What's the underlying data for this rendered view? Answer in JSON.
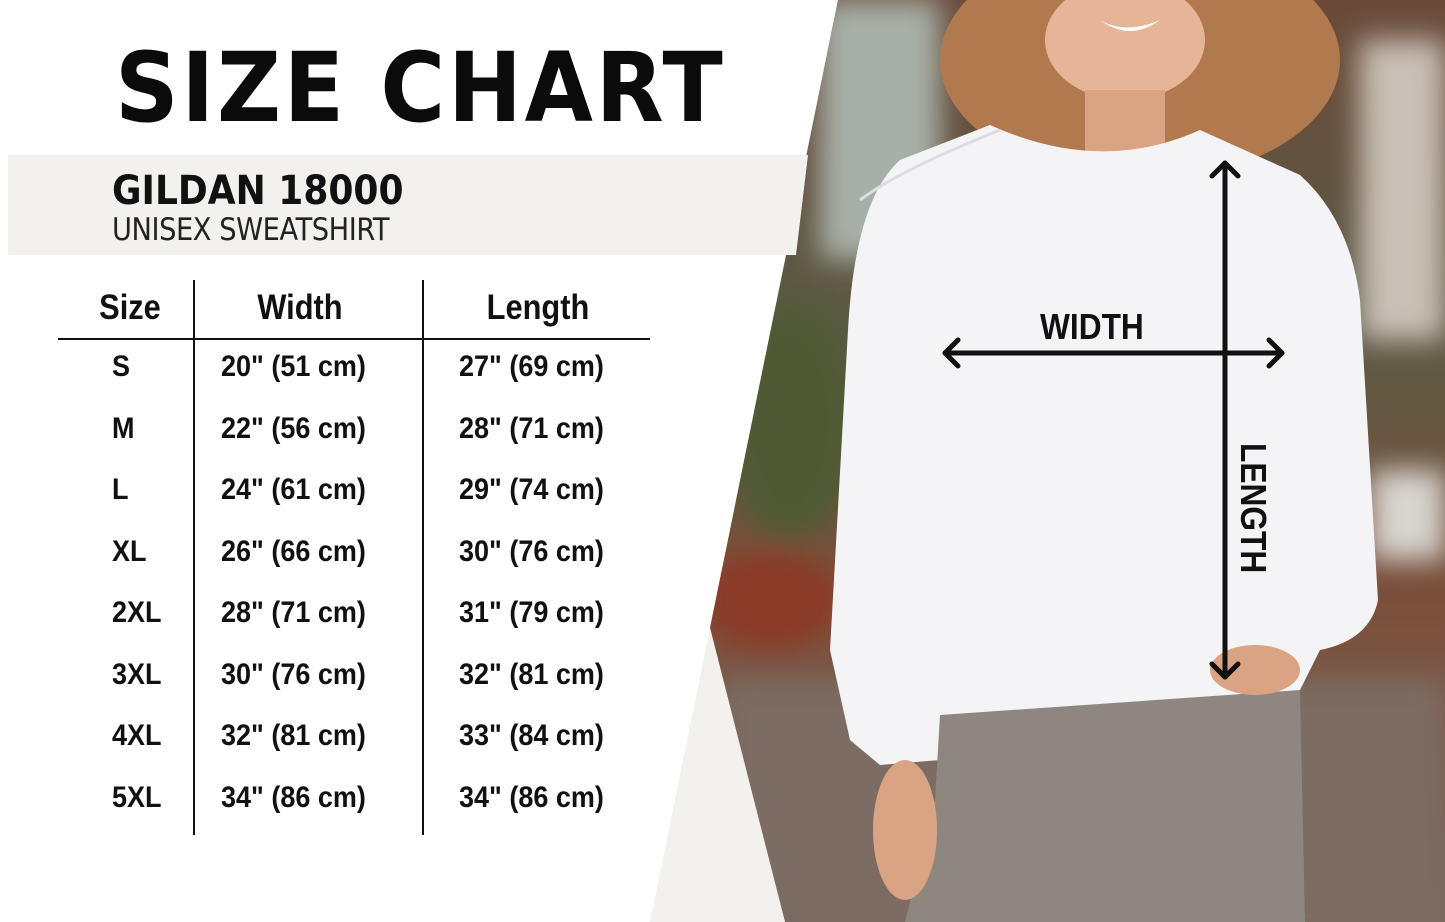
{
  "title": "SIZE CHART",
  "product": {
    "brand_model": "GILDAN 18000",
    "type": "UNISEX SWEATSHIRT"
  },
  "table": {
    "headers": [
      "Size",
      "Width",
      "Length"
    ],
    "rows": [
      {
        "size": "S",
        "width": "20\" (51 cm)",
        "length": "27\" (69 cm)"
      },
      {
        "size": "M",
        "width": "22\" (56 cm)",
        "length": "28\" (71 cm)"
      },
      {
        "size": "L",
        "width": "24\" (61 cm)",
        "length": "29\" (74 cm)"
      },
      {
        "size": "XL",
        "width": "26\" (66 cm)",
        "length": "30\" (76 cm)"
      },
      {
        "size": "2XL",
        "width": "28\" (71 cm)",
        "length": "31\" (79 cm)"
      },
      {
        "size": "3XL",
        "width": "30\" (76 cm)",
        "length": "32\" (81 cm)"
      },
      {
        "size": "4XL",
        "width": "32\" (81 cm)",
        "length": "33\" (84 cm)"
      },
      {
        "size": "5XL",
        "width": "34\" (86 cm)",
        "length": "34\" (86 cm)"
      }
    ]
  },
  "diagram": {
    "width_label": "WIDTH",
    "length_label": "LENGTH"
  },
  "colors": {
    "band": "#f3f1ed",
    "text": "#111111",
    "sweatshirt": "#f4f4f7",
    "jeans": "#8d8780"
  }
}
